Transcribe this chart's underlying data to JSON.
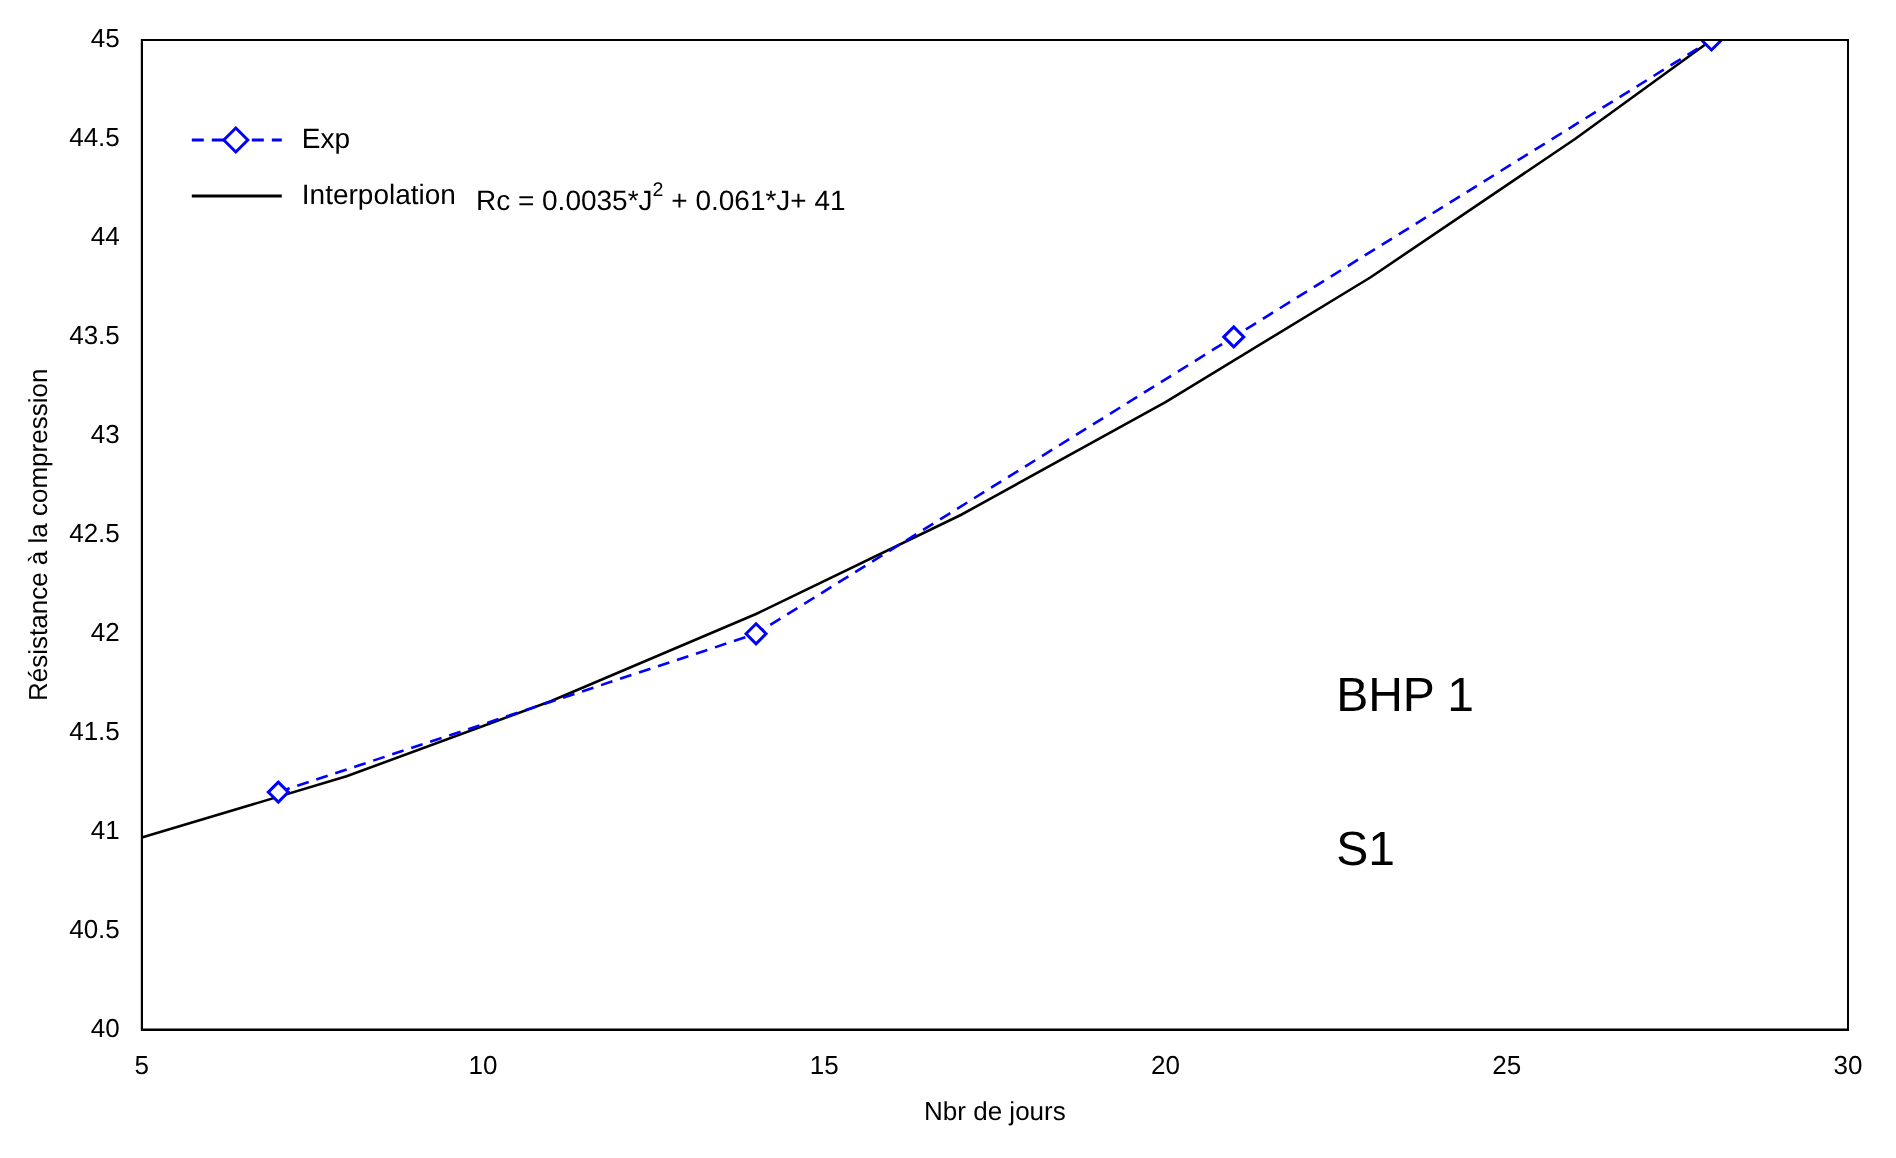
{
  "chart_data": {
    "type": "line",
    "xlabel": "Nbr de jours",
    "ylabel": "Résistance à la compression",
    "xlim": [
      5,
      30
    ],
    "xticks": [
      5,
      10,
      15,
      20,
      25,
      30
    ],
    "ylim": [
      40,
      45
    ],
    "yticks": [
      40,
      40.5,
      41,
      41.5,
      42,
      42.5,
      43,
      43.5,
      44,
      44.5,
      45
    ],
    "grid": false,
    "legend": "top left",
    "series": [
      {
        "name": "Exp",
        "color": "#0000ff",
        "x": [
          7,
          14,
          21,
          28
        ],
        "values": [
          41.2,
          42.0,
          43.5,
          45.0
        ],
        "marker": "diamond",
        "line_style": "dashed"
      },
      {
        "name": "Interpolation",
        "color": "#000000",
        "x": [
          5,
          8,
          11,
          14,
          17,
          20,
          23,
          26,
          28
        ],
        "values": [
          40.97,
          41.28,
          41.66,
          42.1,
          42.6,
          43.17,
          43.8,
          44.5,
          45.0
        ],
        "marker": "none",
        "line_style": "solid"
      }
    ],
    "annotations": [
      "Rc = 0.0035*J$^{2}$ + 0.061*J+ 41",
      "BHP 1",
      "S1"
    ]
  }
}
